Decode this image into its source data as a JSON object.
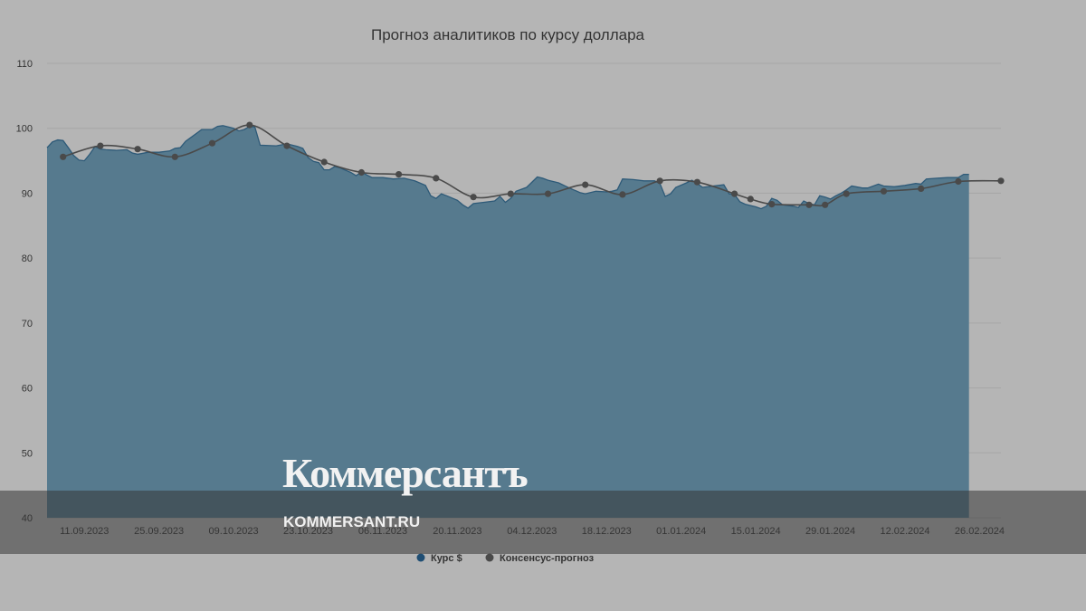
{
  "chart_data": {
    "type": "area",
    "title": "Прогноз аналитиков по курсу доллара",
    "xlabel": "",
    "ylabel": "",
    "ylim": [
      40,
      110
    ],
    "y_ticks": [
      "110",
      "100",
      "90",
      "80",
      "70",
      "60",
      "50",
      "40"
    ],
    "x_ticks": [
      "11.09.2023",
      "25.09.2023",
      "09.10.2023",
      "23.10.2023",
      "06.11.2023",
      "20.11.2023",
      "04.12.2023",
      "18.12.2023",
      "01.01.2024",
      "15.01.2024",
      "29.01.2024",
      "12.02.2024",
      "26.02.2024"
    ],
    "x_tick_dates": [
      "2023-09-11",
      "2023-09-25",
      "2023-10-09",
      "2023-10-23",
      "2023-11-06",
      "2023-11-20",
      "2023-12-04",
      "2023-12-18",
      "2024-01-01",
      "2024-01-15",
      "2024-01-29",
      "2024-02-12",
      "2024-02-26"
    ],
    "x_range": [
      "2023-09-04",
      "2024-03-01"
    ],
    "grid": true,
    "legend_position": "bottom-center",
    "series": [
      {
        "name": "Курс $",
        "kind": "area",
        "color": "#567a8e",
        "point_color": "#1f4e74",
        "points": [
          [
            "2023-09-04",
            97.0
          ],
          [
            "2023-09-05",
            97.9
          ],
          [
            "2023-09-06",
            98.2
          ],
          [
            "2023-09-07",
            98.1
          ],
          [
            "2023-09-08",
            97.0
          ],
          [
            "2023-09-09",
            95.8
          ],
          [
            "2023-09-10",
            95.1
          ],
          [
            "2023-09-11",
            95.0
          ],
          [
            "2023-09-12",
            96.0
          ],
          [
            "2023-09-13",
            97.2
          ],
          [
            "2023-09-14",
            96.8
          ],
          [
            "2023-09-15",
            96.7
          ],
          [
            "2023-09-17",
            96.6
          ],
          [
            "2023-09-19",
            96.7
          ],
          [
            "2023-09-20",
            96.2
          ],
          [
            "2023-09-21",
            96.0
          ],
          [
            "2023-09-23",
            96.3
          ],
          [
            "2023-09-25",
            96.3
          ],
          [
            "2023-09-27",
            96.5
          ],
          [
            "2023-09-28",
            96.9
          ],
          [
            "2023-09-29",
            97.0
          ],
          [
            "2023-09-30",
            98.0
          ],
          [
            "2023-10-02",
            99.2
          ],
          [
            "2023-10-03",
            99.8
          ],
          [
            "2023-10-05",
            99.8
          ],
          [
            "2023-10-06",
            100.3
          ],
          [
            "2023-10-07",
            100.4
          ],
          [
            "2023-10-09",
            100.0
          ],
          [
            "2023-10-10",
            99.6
          ],
          [
            "2023-10-11",
            99.8
          ],
          [
            "2023-10-12",
            100.3
          ],
          [
            "2023-10-13",
            100.2
          ],
          [
            "2023-10-14",
            97.4
          ],
          [
            "2023-10-17",
            97.3
          ],
          [
            "2023-10-19",
            97.6
          ],
          [
            "2023-10-21",
            97.2
          ],
          [
            "2023-10-22",
            96.9
          ],
          [
            "2023-10-23",
            95.5
          ],
          [
            "2023-10-24",
            94.9
          ],
          [
            "2023-10-25",
            94.7
          ],
          [
            "2023-10-26",
            93.6
          ],
          [
            "2023-10-27",
            93.6
          ],
          [
            "2023-10-28",
            94.1
          ],
          [
            "2023-10-29",
            93.9
          ],
          [
            "2023-10-31",
            93.2
          ],
          [
            "2023-11-01",
            92.7
          ],
          [
            "2023-11-02",
            93.3
          ],
          [
            "2023-11-03",
            92.8
          ],
          [
            "2023-11-04",
            92.4
          ],
          [
            "2023-11-06",
            92.4
          ],
          [
            "2023-11-08",
            92.2
          ],
          [
            "2023-11-10",
            92.3
          ],
          [
            "2023-11-12",
            91.9
          ],
          [
            "2023-11-14",
            91.2
          ],
          [
            "2023-11-15",
            89.6
          ],
          [
            "2023-11-16",
            89.2
          ],
          [
            "2023-11-17",
            89.9
          ],
          [
            "2023-11-18",
            89.6
          ],
          [
            "2023-11-20",
            88.9
          ],
          [
            "2023-11-21",
            88.2
          ],
          [
            "2023-11-22",
            87.7
          ],
          [
            "2023-11-23",
            88.4
          ],
          [
            "2023-11-25",
            88.6
          ],
          [
            "2023-11-27",
            88.8
          ],
          [
            "2023-11-28",
            89.5
          ],
          [
            "2023-11-29",
            88.6
          ],
          [
            "2023-11-30",
            89.2
          ],
          [
            "2023-12-01",
            90.3
          ],
          [
            "2023-12-02",
            90.6
          ],
          [
            "2023-12-03",
            90.9
          ],
          [
            "2023-12-05",
            92.5
          ],
          [
            "2023-12-06",
            92.3
          ],
          [
            "2023-12-07",
            92.0
          ],
          [
            "2023-12-09",
            91.6
          ],
          [
            "2023-12-11",
            90.8
          ],
          [
            "2023-12-13",
            90.1
          ],
          [
            "2023-12-14",
            89.9
          ],
          [
            "2023-12-16",
            90.3
          ],
          [
            "2023-12-18",
            90.2
          ],
          [
            "2023-12-19",
            90.3
          ],
          [
            "2023-12-20",
            90.5
          ],
          [
            "2023-12-21",
            92.2
          ],
          [
            "2023-12-23",
            92.1
          ],
          [
            "2023-12-25",
            91.9
          ],
          [
            "2023-12-27",
            91.9
          ],
          [
            "2023-12-28",
            91.5
          ],
          [
            "2023-12-29",
            89.5
          ],
          [
            "2023-12-30",
            89.9
          ],
          [
            "2023-12-31",
            90.9
          ],
          [
            "2024-01-02",
            91.6
          ],
          [
            "2024-01-03",
            92.0
          ],
          [
            "2024-01-04",
            91.5
          ],
          [
            "2024-01-05",
            90.9
          ],
          [
            "2024-01-07",
            91.1
          ],
          [
            "2024-01-09",
            91.3
          ],
          [
            "2024-01-10",
            89.9
          ],
          [
            "2024-01-11",
            89.8
          ],
          [
            "2024-01-12",
            88.7
          ],
          [
            "2024-01-13",
            88.3
          ],
          [
            "2024-01-15",
            87.9
          ],
          [
            "2024-01-16",
            87.6
          ],
          [
            "2024-01-17",
            88.0
          ],
          [
            "2024-01-18",
            89.2
          ],
          [
            "2024-01-19",
            88.9
          ],
          [
            "2024-01-20",
            88.2
          ],
          [
            "2024-01-22",
            88.0
          ],
          [
            "2024-01-23",
            87.8
          ],
          [
            "2024-01-24",
            88.8
          ],
          [
            "2024-01-25",
            88.4
          ],
          [
            "2024-01-26",
            88.2
          ],
          [
            "2024-01-27",
            89.6
          ],
          [
            "2024-01-28",
            89.4
          ],
          [
            "2024-01-29",
            89.1
          ],
          [
            "2024-01-30",
            89.6
          ],
          [
            "2024-01-31",
            90.0
          ],
          [
            "2024-02-01",
            90.5
          ],
          [
            "2024-02-02",
            91.1
          ],
          [
            "2024-02-04",
            90.8
          ],
          [
            "2024-02-05",
            90.8
          ],
          [
            "2024-02-07",
            91.4
          ],
          [
            "2024-02-08",
            91.1
          ],
          [
            "2024-02-10",
            91.0
          ],
          [
            "2024-02-12",
            91.2
          ],
          [
            "2024-02-14",
            91.5
          ],
          [
            "2024-02-15",
            91.4
          ],
          [
            "2024-02-16",
            92.2
          ],
          [
            "2024-02-18",
            92.3
          ],
          [
            "2024-02-20",
            92.4
          ],
          [
            "2024-02-22",
            92.4
          ],
          [
            "2024-02-23",
            92.9
          ],
          [
            "2024-02-24",
            92.9
          ]
        ]
      },
      {
        "name": "Консенсус-прогноз",
        "kind": "line",
        "color": "#4a4a4a",
        "point_color": "#4a4a4a",
        "points": [
          [
            "2023-09-07",
            95.6
          ],
          [
            "2023-09-14",
            97.3
          ],
          [
            "2023-09-21",
            96.8
          ],
          [
            "2023-09-28",
            95.6
          ],
          [
            "2023-10-05",
            97.7
          ],
          [
            "2023-10-12",
            100.5
          ],
          [
            "2023-10-19",
            97.3
          ],
          [
            "2023-10-26",
            94.8
          ],
          [
            "2023-11-02",
            93.2
          ],
          [
            "2023-11-09",
            92.9
          ],
          [
            "2023-11-16",
            92.3
          ],
          [
            "2023-11-23",
            89.4
          ],
          [
            "2023-11-30",
            89.9
          ],
          [
            "2023-12-07",
            89.9
          ],
          [
            "2023-12-14",
            91.3
          ],
          [
            "2023-12-21",
            89.8
          ],
          [
            "2023-12-28",
            91.9
          ],
          [
            "2024-01-04",
            91.7
          ],
          [
            "2024-01-11",
            89.9
          ],
          [
            "2024-01-14",
            89.1
          ],
          [
            "2024-01-18",
            88.3
          ],
          [
            "2024-01-25",
            88.2
          ],
          [
            "2024-01-28",
            88.2
          ],
          [
            "2024-02-01",
            89.9
          ],
          [
            "2024-02-08",
            90.3
          ],
          [
            "2024-02-15",
            90.7
          ],
          [
            "2024-02-22",
            91.8
          ],
          [
            "2024-03-01",
            91.9
          ]
        ]
      }
    ]
  },
  "legend": {
    "items": [
      {
        "label": "Курс $",
        "color": "#1f4e74"
      },
      {
        "label": "Консенсус-прогноз",
        "color": "#4a4a4a"
      }
    ]
  },
  "watermark": {
    "logo": "Коммерсантъ",
    "url": "KOMMERSANT.RU"
  }
}
